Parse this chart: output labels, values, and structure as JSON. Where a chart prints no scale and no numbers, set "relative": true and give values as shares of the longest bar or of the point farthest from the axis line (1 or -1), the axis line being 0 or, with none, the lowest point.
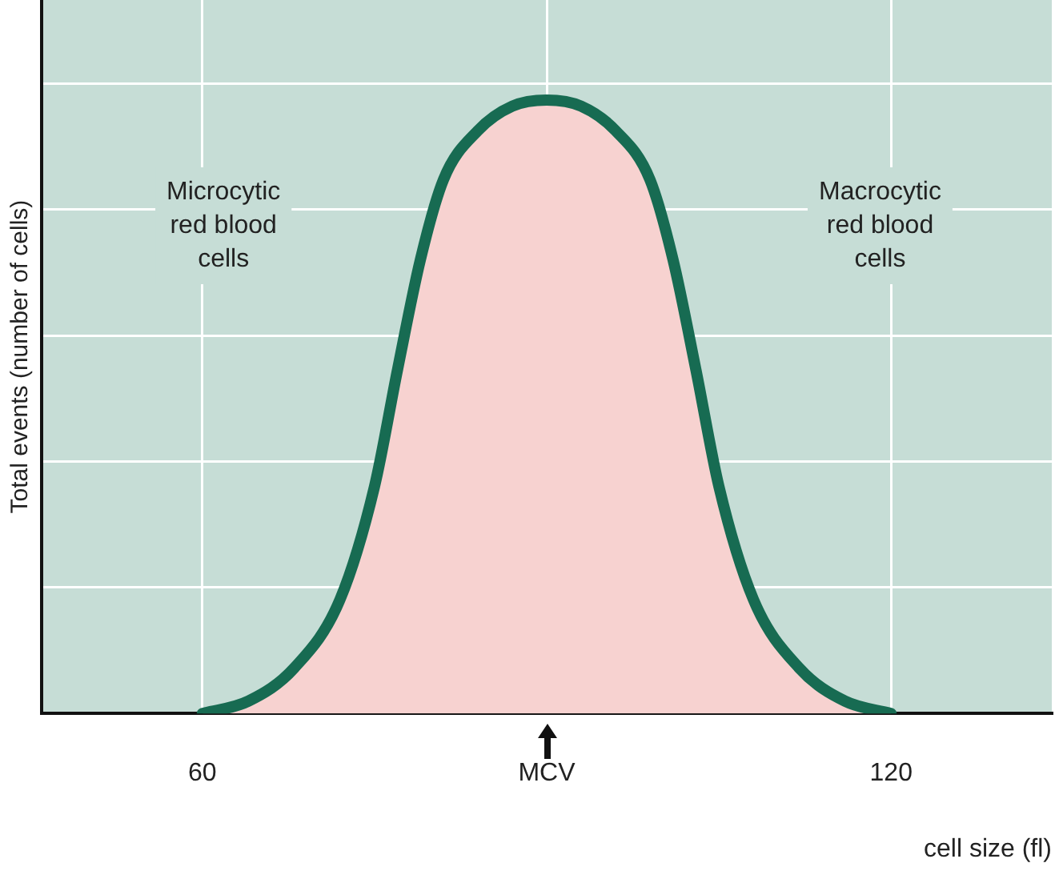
{
  "chart_data": {
    "type": "area",
    "relative": true,
    "xlabel": "cell size (fl)",
    "ylabel": "Total events (number of cells)",
    "x": [
      60,
      64,
      68,
      72,
      75,
      77,
      79,
      81,
      84,
      87,
      90,
      93,
      96,
      99,
      101,
      103,
      105,
      108,
      112,
      116,
      120
    ],
    "series": [
      {
        "color": "#176b52",
        "values": [
          0,
          0.02,
          0.074,
          0.186,
          0.37,
          0.56,
          0.74,
          0.87,
          0.95,
          0.99,
          1,
          0.99,
          0.95,
          0.87,
          0.74,
          0.56,
          0.37,
          0.186,
          0.074,
          0.02,
          0
        ]
      }
    ],
    "xlim": [
      46,
      134
    ],
    "xticks": [
      60,
      {
        "value": 90,
        "label": "MCV"
      },
      120
    ],
    "annotations": [
      "Microcytic\nred blood\ncells",
      "Macrocytic\nred blood\ncells"
    ],
    "grid": true,
    "legend": false
  }
}
